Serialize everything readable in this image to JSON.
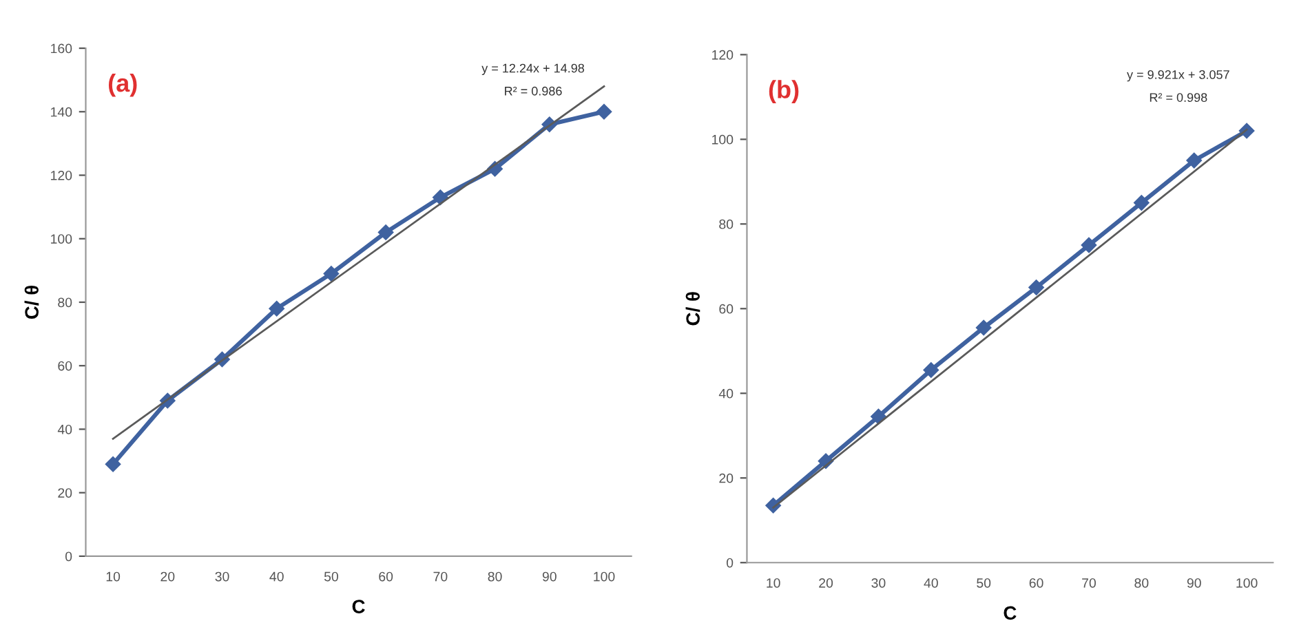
{
  "chart_data": [
    {
      "type": "line",
      "xlabel": "C",
      "ylabel": "C/ θ",
      "categories": [
        "10",
        "20",
        "30",
        "40",
        "50",
        "60",
        "70",
        "80",
        "90",
        "100"
      ],
      "ylim": [
        0,
        160
      ],
      "yticks": [
        0,
        20,
        40,
        60,
        80,
        100,
        120,
        140,
        160
      ],
      "grid": false,
      "marker": "diamond",
      "line_style": "solid",
      "annotations": [
        "(a)",
        "y = 12.24x + 14.98",
        "R² = 0.986"
      ],
      "series": [
        {
          "color": "#3f62a0",
          "values": [
            29,
            49,
            62,
            78,
            89,
            102,
            113,
            122,
            136,
            140
          ]
        },
        {
          "type": "line",
          "color": "#5a5a5a",
          "marker": "none",
          "x": [
            "10",
            "100"
          ],
          "values": [
            37,
            148
          ]
        }
      ]
    },
    {
      "type": "line",
      "xlabel": "C",
      "ylabel": "C/ θ",
      "categories": [
        "10",
        "20",
        "30",
        "40",
        "50",
        "60",
        "70",
        "80",
        "90",
        "100"
      ],
      "ylim": [
        0,
        120
      ],
      "yticks": [
        0,
        20,
        40,
        60,
        80,
        100,
        120
      ],
      "grid": false,
      "marker": "diamond",
      "line_style": "solid",
      "annotations": [
        "(b)",
        "y = 9.921x + 3.057",
        "R² = 0.998"
      ],
      "series": [
        {
          "color": "#3f62a0",
          "values": [
            13.5,
            24,
            34.5,
            45.5,
            55.5,
            65,
            75,
            85,
            95,
            102
          ]
        },
        {
          "type": "line",
          "color": "#5a5a5a",
          "marker": "none",
          "x": [
            "10",
            "100"
          ],
          "values": [
            13,
            102.3
          ]
        }
      ]
    }
  ]
}
